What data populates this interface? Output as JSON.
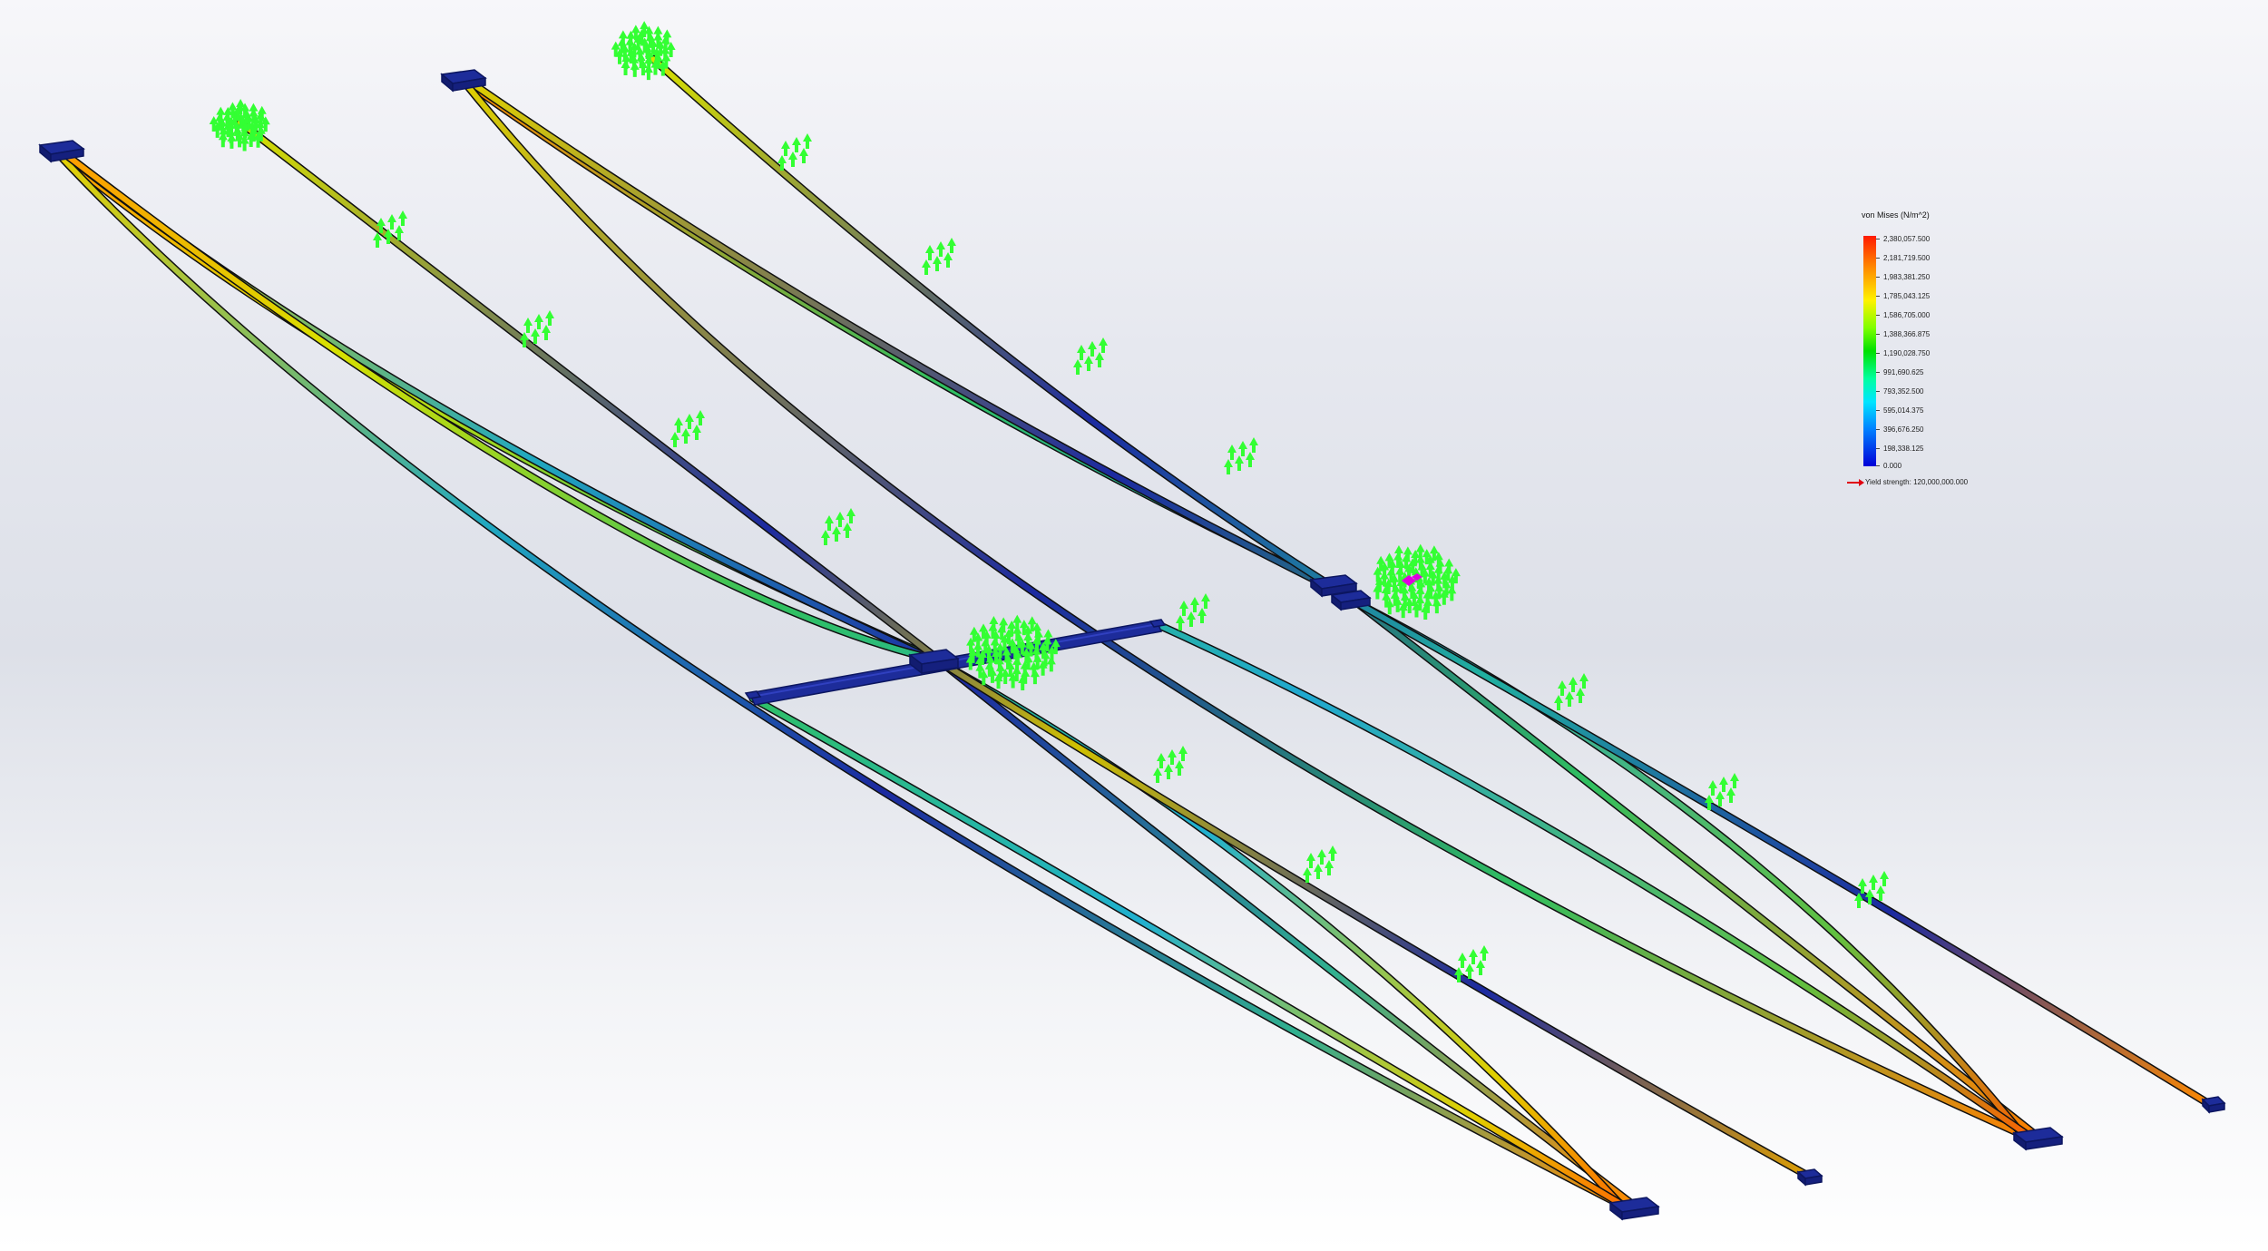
{
  "legend": {
    "title": "von Mises (N/m^2)",
    "ticks": [
      "2,380,057.500",
      "2,181,719.500",
      "1,983,381.250",
      "1,785,043.125",
      "1,586,705.000",
      "1,388,366.875",
      "1,190,028.750",
      "991,690.625",
      "793,352.500",
      "595,014.375",
      "396,676.250",
      "198,338.125",
      "0.000"
    ],
    "yield_label": "Yield strength: 120,000,000.000",
    "colors": {
      "max": "#ff1a00",
      "mid": "#00e000",
      "min": "#0000d8",
      "yield_arrow": "#e00010"
    }
  },
  "model": {
    "beam_colors": [
      "#ff8c00",
      "#d8e000",
      "#50d030",
      "#20b8a0",
      "#1890e0",
      "#2020a8"
    ],
    "support_color": "#1d2c9a",
    "load_marker_color": "#33ff33",
    "load_marker_icon": "green-load-arrow-icon",
    "special_marker_color": "#e000e0"
  }
}
